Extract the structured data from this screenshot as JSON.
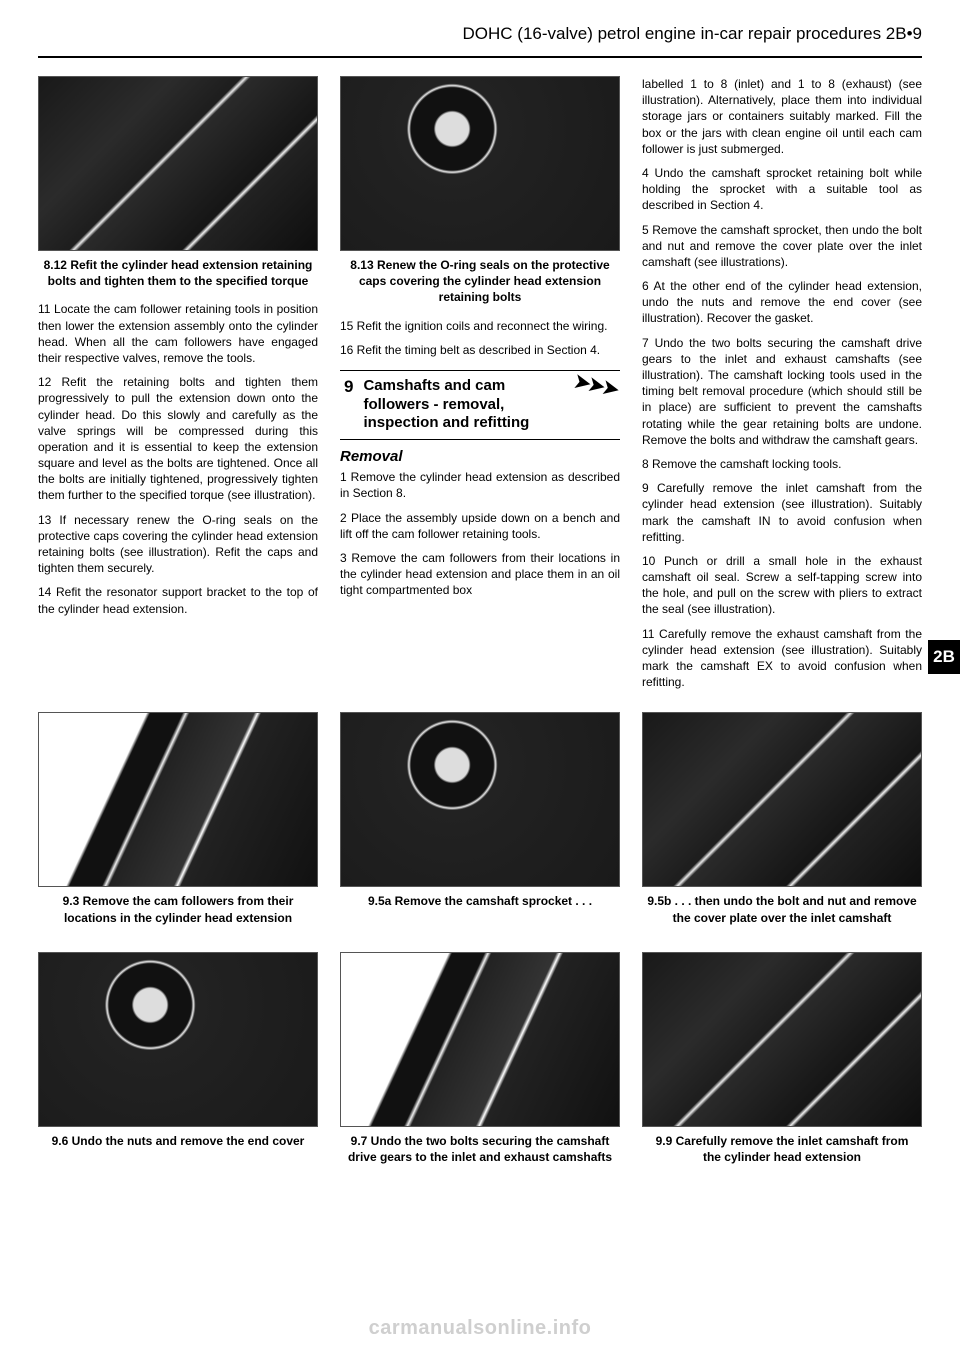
{
  "header": "DOHC (16-valve) petrol engine in-car repair procedures  2B•9",
  "col1": {
    "fig1_caption": "8.12  Refit the cylinder head extension retaining bolts and tighten them to the specified torque",
    "p1": "11  Locate the cam follower retaining tools in position then lower the extension assembly onto the cylinder head. When all the cam followers have engaged their respective valves, remove the tools.",
    "p2": "12  Refit the retaining bolts and tighten them progressively to pull the extension down onto the cylinder head. Do this slowly and carefully as the valve springs will be compressed during this operation and it is essential to keep the extension square and level as the bolts are tightened. Once all the bolts are initially tightened, progressively tighten them further to the specified torque (see illustration).",
    "p3": "13  If necessary renew the O-ring seals on the protective caps covering the cylinder head extension retaining bolts (see illustration). Refit the caps and tighten them securely.",
    "p4": "14  Refit the resonator support bracket to the top of the cylinder head extension."
  },
  "col2": {
    "fig1_caption": "8.13  Renew the O-ring seals on the protective caps covering the cylinder head extension retaining bolts",
    "p1": "15  Refit the ignition coils and reconnect the wiring.",
    "p2": "16  Refit the timing belt as described in Section 4.",
    "sec_num": "9",
    "sec_title": "Camshafts and cam followers - removal, inspection and refitting",
    "sub1": "Removal",
    "p3": "1  Remove the cylinder head extension as described in Section 8.",
    "p4": "2  Place the assembly upside down on a bench and lift off the cam follower retaining tools.",
    "p5": "3  Remove the cam followers from their locations in the cylinder head extension and place them in an oil tight compartmented box"
  },
  "col3": {
    "p1": "labelled 1 to 8 (inlet) and 1 to 8 (exhaust) (see illustration). Alternatively, place them into individual storage jars or containers suitably marked. Fill the box or the jars with clean engine oil until each cam follower is just submerged.",
    "p2": "4  Undo the camshaft sprocket retaining bolt while holding the sprocket with a suitable tool as described in Section 4.",
    "p3": "5  Remove the camshaft sprocket, then undo the bolt and nut and remove the cover plate over the inlet camshaft (see illustrations).",
    "p4": "6  At the other end of the cylinder head extension, undo the nuts and remove the end cover (see illustration). Recover the gasket.",
    "p5": "7  Undo the two bolts securing the camshaft drive gears to the inlet and exhaust camshafts (see illustration). The camshaft locking tools used in the timing belt removal procedure (which should still be in place) are sufficient to prevent the camshafts rotating while the gear retaining bolts are undone. Remove the bolts and withdraw the camshaft gears.",
    "p6": "8  Remove the camshaft locking tools.",
    "p7": "9  Carefully remove the inlet camshaft from the cylinder head extension (see illustration). Suitably mark the camshaft IN to avoid confusion when refitting.",
    "p8": "10  Punch or drill a small hole in the exhaust camshaft oil seal. Screw a self-tapping screw into the hole, and pull on the screw with pliers to extract the seal (see illustration).",
    "p9": "11  Carefully remove the exhaust camshaft from the cylinder head extension (see illustration). Suitably mark the camshaft EX to avoid confusion when refitting."
  },
  "side_tab": "2B",
  "figs_mid": {
    "c1": "9.3  Remove the cam followers from their locations in the cylinder head extension",
    "c2": "9.5a  Remove the camshaft sprocket . . .",
    "c3": "9.5b  . . . then undo the bolt and nut and remove the cover plate over the inlet camshaft"
  },
  "figs_bot": {
    "c1": "9.6  Undo the nuts and remove the end cover",
    "c2": "9.7  Undo the two bolts securing the camshaft drive gears to the inlet and exhaust camshafts",
    "c3": "9.9  Carefully remove the inlet camshaft from the cylinder head extension"
  },
  "watermark": "carmanualsonline.info"
}
